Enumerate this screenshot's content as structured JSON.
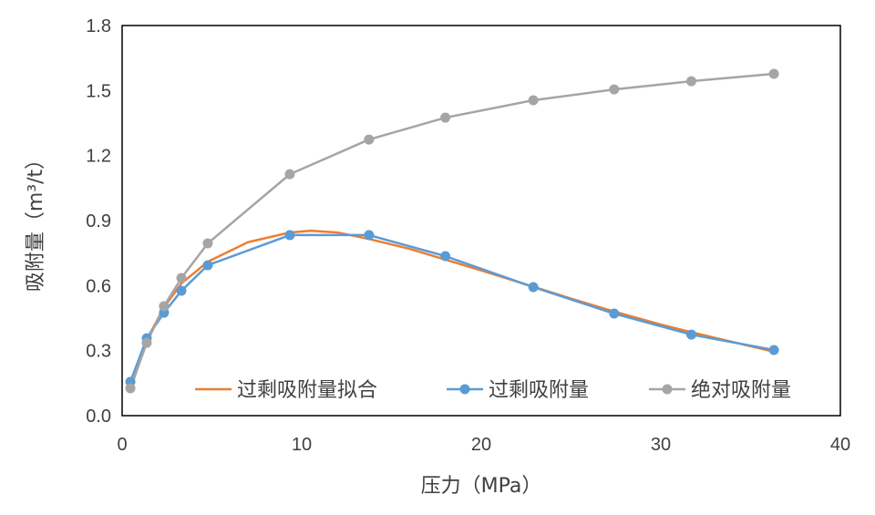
{
  "chart_data": {
    "type": "line",
    "xlabel": "压力（MPa）",
    "ylabel": "吸附量（m³/t）",
    "xlim": [
      0,
      40
    ],
    "ylim": [
      0,
      1.8
    ],
    "xticks": [
      0,
      10,
      20,
      30,
      40
    ],
    "yticks": [
      "0.0",
      "0.3",
      "0.6",
      "0.9",
      "1.2",
      "1.5",
      "1.8"
    ],
    "legend_position": "bottom-inside",
    "series": [
      {
        "name": "过剩吸附量拟合",
        "color": "#ED7D31",
        "markers": false,
        "x": [
          0.46,
          1.37,
          2.33,
          3.3,
          4.77,
          7,
          9.34,
          10.5,
          12,
          13.75,
          16,
          18,
          20,
          22.9,
          25,
          27.4,
          30,
          31.7,
          34,
          36.3
        ],
        "y": [
          0.12,
          0.35,
          0.5,
          0.61,
          0.71,
          0.8,
          0.845,
          0.853,
          0.845,
          0.815,
          0.77,
          0.72,
          0.67,
          0.595,
          0.54,
          0.48,
          0.42,
          0.385,
          0.34,
          0.295
        ]
      },
      {
        "name": "过剩吸附量",
        "color": "#5B9BD5",
        "markers": true,
        "x": [
          0.46,
          1.37,
          2.33,
          3.3,
          4.77,
          9.34,
          13.75,
          18.0,
          22.9,
          27.4,
          31.7,
          36.3
        ],
        "y": [
          0.156,
          0.357,
          0.475,
          0.576,
          0.694,
          0.833,
          0.833,
          0.736,
          0.593,
          0.471,
          0.374,
          0.303
        ]
      },
      {
        "name": "绝对吸附量",
        "color": "#A5A5A5",
        "markers": true,
        "x": [
          0.46,
          1.37,
          2.33,
          3.3,
          4.77,
          9.34,
          13.75,
          18.0,
          22.9,
          27.4,
          31.7,
          36.3
        ],
        "y": [
          0.126,
          0.336,
          0.505,
          0.635,
          0.795,
          1.114,
          1.274,
          1.375,
          1.455,
          1.505,
          1.543,
          1.577
        ]
      }
    ]
  }
}
